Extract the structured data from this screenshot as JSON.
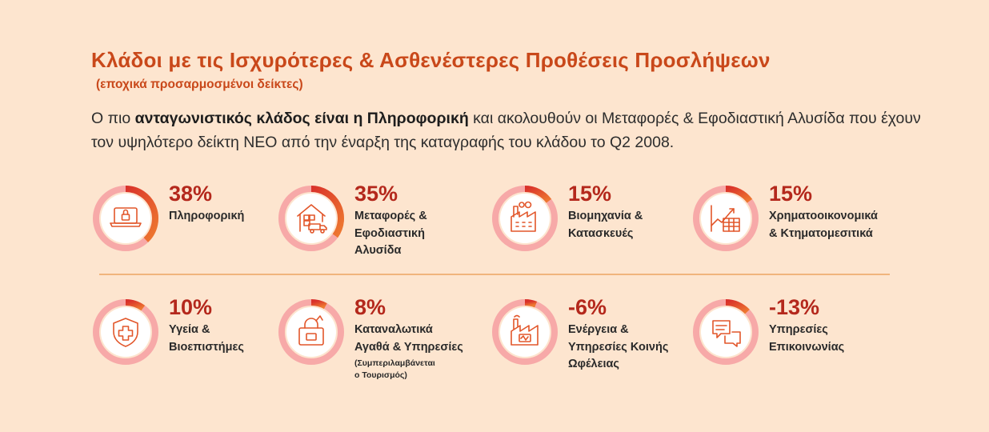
{
  "header": {
    "title": "Κλάδοι με τις Ισχυρότερες & Ασθενέστερες Προθέσεις Προσλήψεων",
    "subtitle": "(εποχικά προσαρμοσμένοι δείκτες)",
    "desc_pre": "Ο πιο ",
    "desc_bold": "ανταγωνιστικός κλάδος είναι η Πληροφορική",
    "desc_post": " και ακολουθούν οι Μεταφορές & Εφοδιαστική Αλυσίδα που έχουν τον υψηλότερο δείκτη ΝΕΟ από την έναρξη της καταγραφής του κλάδου το Q2 2008."
  },
  "colors": {
    "background": "#fde5cf",
    "ring_track": "#f7a9a8",
    "ring_fill": "#d9312a",
    "ring_fill_end": "#ee7a30",
    "title": "#c9481a",
    "value": "#b4281c",
    "icon": "#e2562a"
  },
  "sectors": [
    {
      "value": "38%",
      "level": 0.38,
      "lines": [
        "Πληροφορική"
      ],
      "icon": "laptop-lock-icon"
    },
    {
      "value": "35%",
      "level": 0.35,
      "lines": [
        "Μεταφορές &",
        "Εφοδιαστική",
        "Αλυσίδα"
      ],
      "icon": "warehouse-truck-icon"
    },
    {
      "value": "15%",
      "level": 0.15,
      "lines": [
        "Βιομηχανία &",
        "Κατασκευές"
      ],
      "icon": "factory-icon"
    },
    {
      "value": "15%",
      "level": 0.15,
      "lines": [
        "Χρηματοοικονομικά",
        "& Κτηματομεσιτικά"
      ],
      "icon": "chart-table-icon"
    },
    {
      "value": "10%",
      "level": 0.1,
      "lines": [
        "Υγεία &",
        "Βιοεπιστήμες"
      ],
      "icon": "shield-cross-icon"
    },
    {
      "value": "8%",
      "level": 0.08,
      "lines": [
        "Καταναλωτικά",
        "Αγαθά & Υπηρεσίες"
      ],
      "note_lines": [
        "(Συμπεριλαμβάνεται",
        "ο Τουρισμός)"
      ],
      "icon": "shopping-bag-icon"
    },
    {
      "value": "-6%",
      "level": 0.06,
      "lines": [
        "Ενέργεια &",
        "Υπηρεσίες Κοινής",
        "Ωφέλειας"
      ],
      "icon": "power-plant-icon"
    },
    {
      "value": "-13%",
      "level": 0.13,
      "lines": [
        "Υπηρεσίες",
        "Επικοινωνίας"
      ],
      "icon": "chat-bubbles-icon"
    }
  ]
}
